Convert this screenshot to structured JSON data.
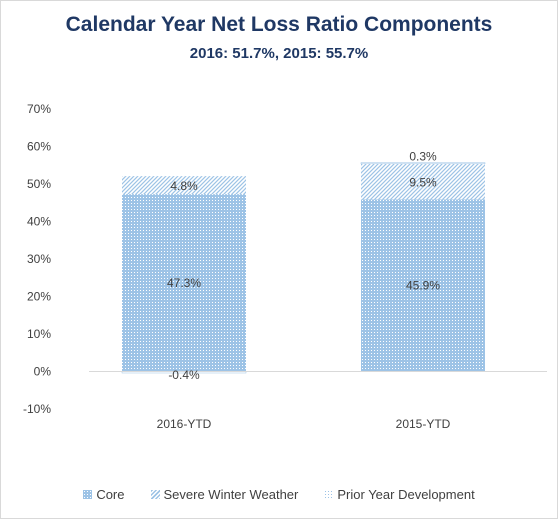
{
  "chart_data": {
    "type": "bar",
    "stacked": true,
    "title": "Calendar Year Net Loss Ratio Components",
    "subtitle": "2016: 51.7%, 2015: 55.7%",
    "categories": [
      "2016-YTD",
      "2015-YTD"
    ],
    "series": [
      {
        "name": "Core",
        "values": [
          47.3,
          45.9
        ],
        "labels": [
          "47.3%",
          "45.9%"
        ],
        "color": "#9dc3e6"
      },
      {
        "name": "Severe Winter Weather",
        "values": [
          4.8,
          9.5
        ],
        "labels": [
          "4.8%",
          "9.5%"
        ],
        "color": "#9dc3e6"
      },
      {
        "name": "Prior Year Development",
        "values": [
          -0.4,
          0.3
        ],
        "labels": [
          "-0.4%",
          "0.3%"
        ],
        "color": "#9dc3e6"
      }
    ],
    "ylim": [
      -10,
      70
    ],
    "yticks": [
      -10,
      0,
      10,
      20,
      30,
      40,
      50,
      60,
      70
    ],
    "ytick_labels": [
      "-10%",
      "0%",
      "10%",
      "20%",
      "30%",
      "40%",
      "50%",
      "60%",
      "70%"
    ],
    "grid": false,
    "legend_position": "bottom"
  }
}
